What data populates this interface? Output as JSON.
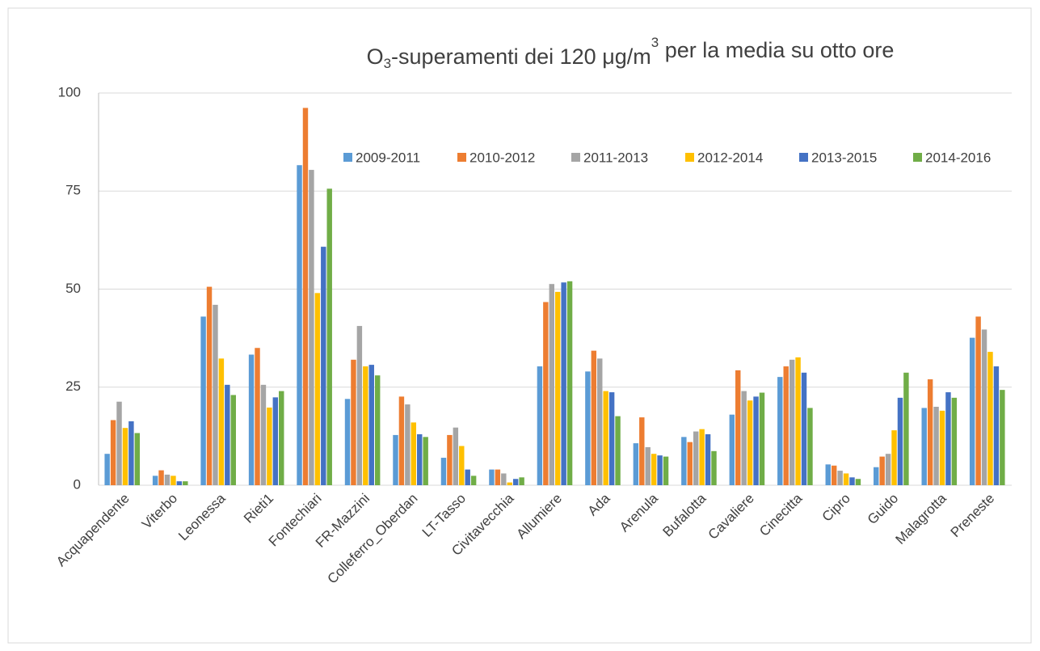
{
  "chart_data": {
    "type": "bar",
    "title": [
      "O",
      "3",
      "-superamenti dei 120 μg/m",
      "3",
      " per la media su otto ore"
    ],
    "categories": [
      "Acquapendente",
      "Viterbo",
      "Leonessa",
      "Rieti1",
      "Fontechiari",
      "FR-Mazzini",
      "Colleferro_Oberdan",
      "LT-Tasso",
      "Civitavecchia",
      "Allumiere",
      "Ada",
      "Arenula",
      "Bufalotta",
      "Cavaliere",
      "Cinecitta",
      "Cipro",
      "Guido",
      "Malagrotta",
      "Preneste"
    ],
    "series": [
      {
        "name": "2009-2011",
        "color": "#5b9bd5",
        "values": [
          8,
          2.4,
          43,
          33.3,
          81.6,
          22,
          12.8,
          7,
          4,
          30.3,
          29,
          10.7,
          12.3,
          18,
          27.6,
          5.3,
          4.6,
          19.7,
          37.6
        ]
      },
      {
        "name": "2010-2012",
        "color": "#ed7d31",
        "values": [
          16.6,
          3.8,
          50.6,
          35,
          96.2,
          32,
          22.6,
          12.8,
          4,
          46.7,
          34.3,
          17.3,
          11,
          29.3,
          30.3,
          5,
          7.3,
          27,
          43
        ]
      },
      {
        "name": "2011-2013",
        "color": "#a5a5a5",
        "values": [
          21.3,
          2.7,
          46,
          25.6,
          80.4,
          40.6,
          20.6,
          14.7,
          3,
          51.3,
          32.3,
          9.7,
          13.7,
          24,
          32,
          3.7,
          8,
          20,
          39.7
        ]
      },
      {
        "name": "2012-2014",
        "color": "#ffc000",
        "values": [
          14.6,
          2.4,
          32.3,
          19.8,
          49,
          30.3,
          16,
          10,
          0.7,
          49.3,
          24,
          8,
          14.3,
          21.6,
          32.6,
          3,
          14,
          19,
          34
        ]
      },
      {
        "name": "2013-2015",
        "color": "#4472c4",
        "values": [
          16.3,
          1,
          25.6,
          22.4,
          60.8,
          30.7,
          13,
          4,
          1.6,
          51.7,
          23.7,
          7.6,
          13,
          22.6,
          28.7,
          2,
          22.3,
          23.7,
          30.3
        ]
      },
      {
        "name": "2014-2016",
        "color": "#70ad47",
        "values": [
          13.3,
          1,
          23,
          24,
          75.6,
          28,
          12.3,
          2.4,
          2,
          52,
          17.6,
          7.3,
          8.7,
          23.6,
          19.7,
          1.6,
          28.7,
          22.3,
          24.3
        ]
      }
    ],
    "ylim": [
      0,
      100
    ],
    "yticks": [
      0,
      25,
      50,
      75,
      100
    ],
    "grid": true
  }
}
